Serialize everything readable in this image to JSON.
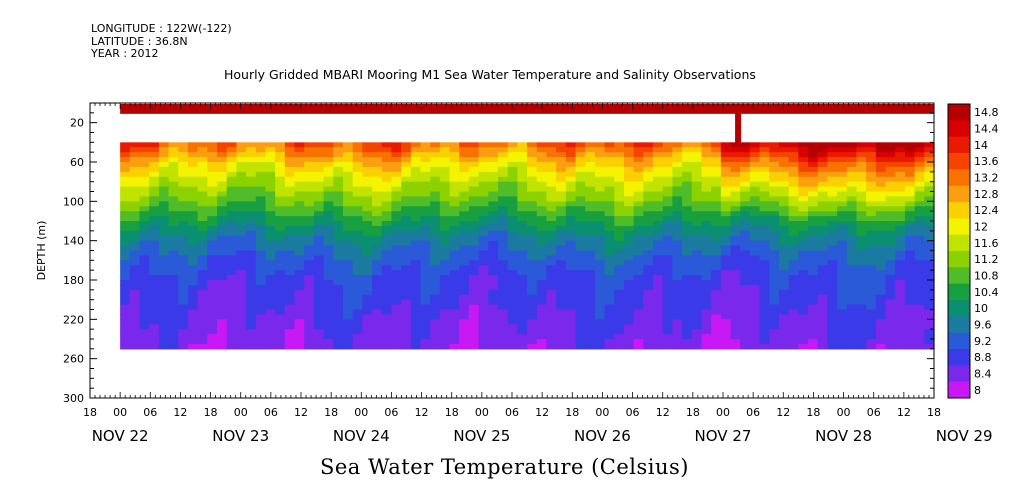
{
  "header": {
    "longitude": "LONGITUDE : 122W(-122)",
    "latitude": "LATITUDE : 36.8N",
    "year": "YEAR : 2012"
  },
  "chart_data": {
    "type": "heatmap",
    "title": "Hourly Gridded MBARI Mooring M1 Sea Water Temperature and Salinity Observations",
    "xlabel": "Sea Water Temperature (Celsius)",
    "ylabel": "DEPTH (m)",
    "y_axis": {
      "range": [
        0,
        300
      ],
      "inverted": true,
      "ticks": [
        20,
        60,
        100,
        140,
        180,
        220,
        260,
        300
      ]
    },
    "x_axis": {
      "range_hours": [
        -6,
        162
      ],
      "hour_ticks": [
        "18",
        "00",
        "06",
        "12",
        "18",
        "00",
        "06",
        "12",
        "18",
        "00",
        "06",
        "12",
        "18",
        "00",
        "06",
        "12",
        "18",
        "00",
        "06",
        "12",
        "18",
        "00",
        "06",
        "12",
        "18",
        "00",
        "06",
        "12",
        "18"
      ],
      "day_labels": [
        "NOV 22",
        "NOV 23",
        "NOV 24",
        "NOV 25",
        "NOV 26",
        "NOV 27",
        "NOV 28",
        "NOV 29"
      ]
    },
    "colorbar": {
      "labels": [
        "14.8",
        "14.4",
        "14",
        "13.6",
        "13.2",
        "12.8",
        "12.4",
        "12",
        "11.6",
        "11.2",
        "10.8",
        "10.4",
        "10",
        "9.6",
        "9.2",
        "8.8",
        "8.4",
        "8"
      ],
      "colors": [
        "#b40000",
        "#d80000",
        "#ea1a00",
        "#f44400",
        "#f87200",
        "#fb9e10",
        "#fbd000",
        "#f4f400",
        "#c0e400",
        "#8cd200",
        "#50bc28",
        "#18a040",
        "#0a9070",
        "#1a7aa0",
        "#2a5ad8",
        "#3a3ae8",
        "#7a28ec",
        "#c818f4"
      ]
    },
    "data_extent": {
      "surface_band_depth_m": [
        0,
        10
      ],
      "profile_depth_m": [
        40,
        250
      ],
      "time_hours": [
        0,
        162
      ],
      "surface_column_hour": 123
    },
    "profile_summary": {
      "depth_m": [
        40,
        60,
        80,
        100,
        120,
        140,
        160,
        180,
        200,
        220,
        240,
        250
      ],
      "temp_c": [
        13.4,
        12.3,
        11.6,
        11.0,
        10.3,
        9.7,
        9.3,
        9.0,
        8.9,
        8.7,
        8.6,
        8.5
      ]
    },
    "surface_temp_c": 14.6
  }
}
